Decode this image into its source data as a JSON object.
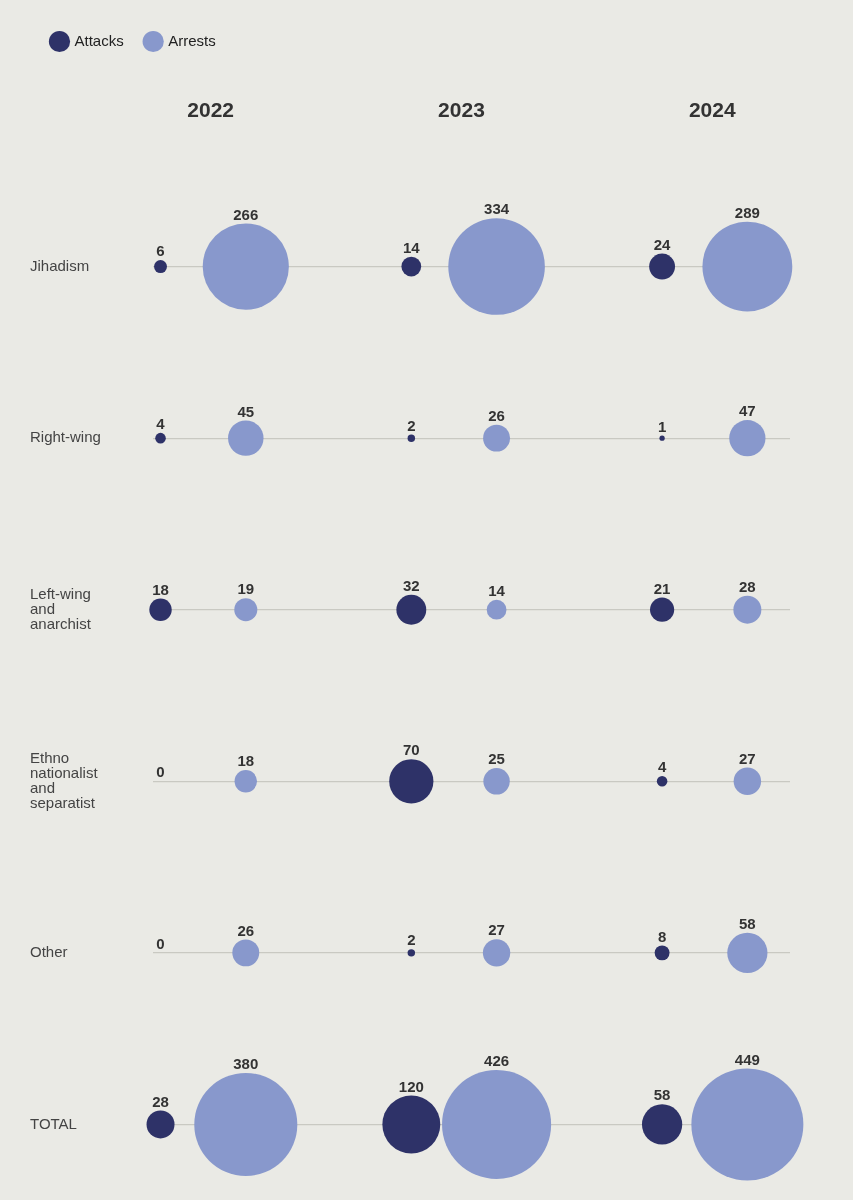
{
  "chart_data": {
    "type": "other",
    "categories": [
      "Jihadism",
      "Right-wing",
      "Left-wing and anarchist",
      "Ethno nationalist and separatist",
      "Other",
      "TOTAL"
    ],
    "annotations": [
      "2022",
      "2023",
      "2024"
    ],
    "series": [
      {
        "name": "Attacks",
        "color": "#2e3268",
        "values": [
          6,
          4,
          18,
          0,
          0,
          28
        ]
      },
      {
        "name": "Arrests",
        "color": "#8898cc",
        "values": [
          266,
          45,
          19,
          18,
          26,
          380
        ]
      },
      {
        "color": "#2e3268",
        "values": [
          14,
          2,
          32,
          70,
          2,
          120
        ]
      },
      {
        "color": "#8898cc",
        "values": [
          334,
          26,
          14,
          25,
          27,
          426
        ]
      },
      {
        "color": "#2e3268",
        "values": [
          24,
          1,
          21,
          4,
          8,
          58
        ]
      },
      {
        "color": "#8898cc",
        "values": [
          289,
          47,
          28,
          27,
          58,
          449
        ]
      }
    ],
    "data_labels": true,
    "legend": "top left"
  }
}
